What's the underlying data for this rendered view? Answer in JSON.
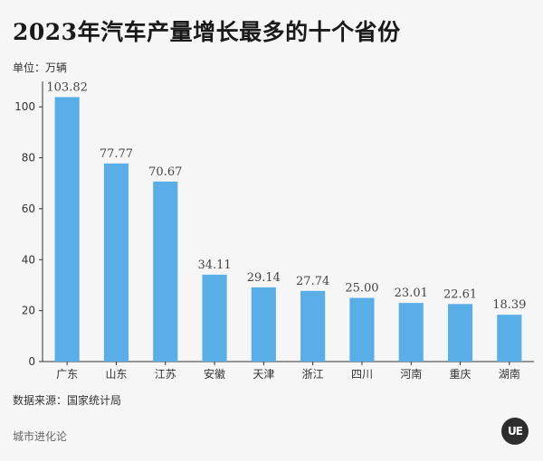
{
  "title": "2023年汽车产量增长最多的十个省份",
  "unit_label": "单位：万辆",
  "source_label": "数据来源：国家统计局",
  "brand": "城市进化论",
  "logo_text": "UE",
  "colors": {
    "bar": "#5aaee8",
    "axis": "#333333",
    "logo": "#2d2d2d"
  },
  "chart_data": {
    "type": "bar",
    "categories": [
      "广东",
      "山东",
      "江苏",
      "安徽",
      "天津",
      "浙江",
      "四川",
      "河南",
      "重庆",
      "湖南"
    ],
    "values": [
      103.82,
      77.77,
      70.67,
      34.11,
      29.14,
      27.74,
      25.0,
      23.01,
      22.61,
      18.39
    ],
    "value_labels": [
      "103.82",
      "77.77",
      "70.67",
      "34.11",
      "29.14",
      "27.74",
      "25.00",
      "23.01",
      "22.61",
      "18.39"
    ],
    "yticks": [
      0,
      20,
      40,
      60,
      80,
      100
    ],
    "ylim": [
      0,
      110
    ],
    "title": "2023年汽车产量增长最多的十个省份",
    "xlabel": "",
    "ylabel": "",
    "grid": false
  }
}
